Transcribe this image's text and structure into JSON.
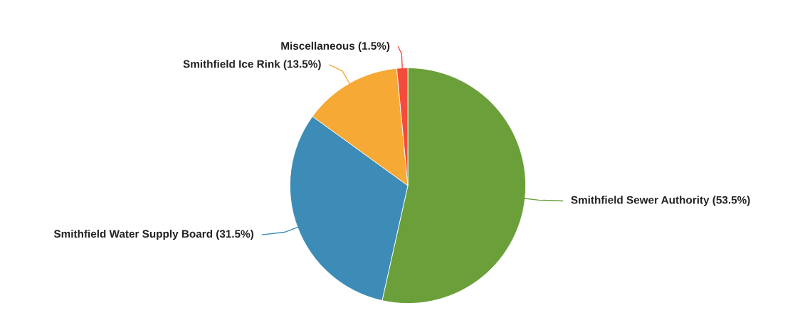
{
  "chart_data": {
    "type": "pie",
    "categories": [
      "Smithfield Sewer Authority",
      "Smithfield Water Supply Board",
      "Smithfield Ice Rink",
      "Miscellaneous"
    ],
    "values": [
      53.5,
      31.5,
      13.5,
      1.5
    ],
    "value_labels": [
      "(53.5%)",
      "(31.5%)",
      "(13.5%)",
      "(1.5%)"
    ],
    "colors": [
      "#6a9f3a",
      "#3d8bb7",
      "#f6a935",
      "#f44c3c"
    ]
  }
}
